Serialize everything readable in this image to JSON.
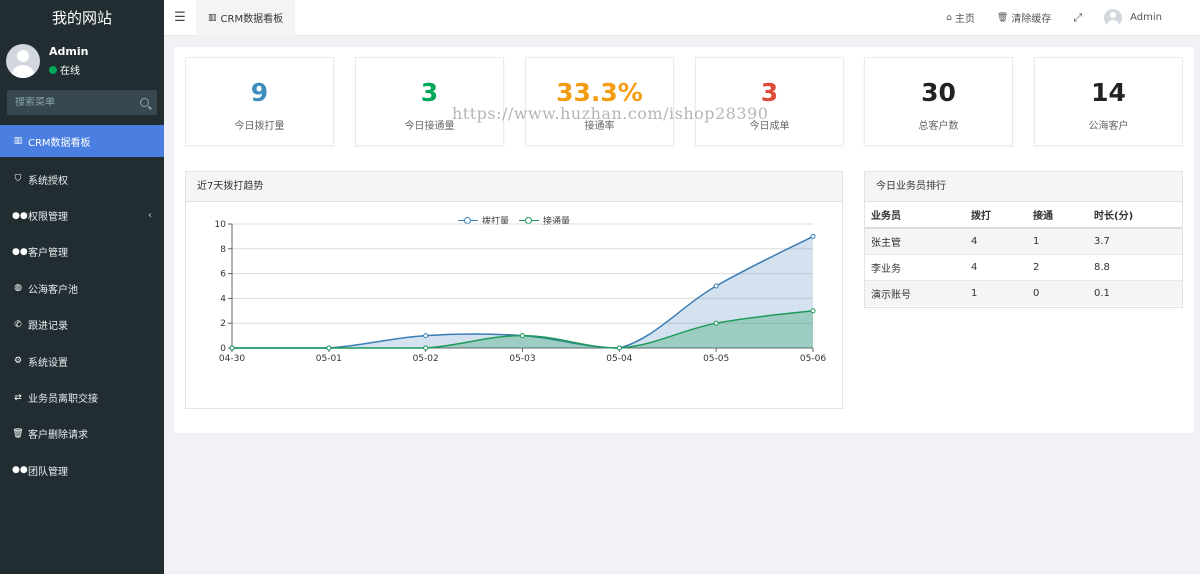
{
  "site": {
    "brand": "我的网站"
  },
  "user": {
    "name": "Admin",
    "status": "在线"
  },
  "search": {
    "placeholder": "搜索菜单"
  },
  "menu": [
    {
      "label": "CRM数据看板",
      "icon": "bar-chart-icon",
      "active": true
    },
    {
      "label": "系统授权",
      "icon": "shield-icon"
    },
    {
      "label": "权限管理",
      "icon": "users-icon",
      "caret": "‹"
    },
    {
      "label": "客户管理",
      "icon": "users-icon"
    },
    {
      "label": "公海客户池",
      "icon": "globe-icon"
    },
    {
      "label": "跟进记录",
      "icon": "phone-icon"
    },
    {
      "label": "系统设置",
      "icon": "gears-icon"
    },
    {
      "label": "业务员离职交接",
      "icon": "exchange-icon"
    },
    {
      "label": "客户删除请求",
      "icon": "trash-icon"
    },
    {
      "label": "团队管理",
      "icon": "users-icon"
    }
  ],
  "header": {
    "tab": "CRM数据看板",
    "home": "主页",
    "clear_cache": "清除缓存",
    "admin": "Admin"
  },
  "stats": [
    {
      "value": "9",
      "label": "今日拨打量",
      "color": "#3c8dbc"
    },
    {
      "value": "3",
      "label": "今日接通量",
      "color": "#00a65a"
    },
    {
      "value": "33.3%",
      "label": "接通率",
      "color": "#f39c12"
    },
    {
      "value": "3",
      "label": "今日成单",
      "color": "#dd4b39"
    },
    {
      "value": "30",
      "label": "总客户数",
      "color": "#222222"
    },
    {
      "value": "14",
      "label": "公海客户",
      "color": "#222222"
    }
  ],
  "trend_panel": {
    "title": "近7天拨打趋势"
  },
  "chart_data": {
    "type": "area",
    "x": [
      "04-30",
      "05-01",
      "05-02",
      "05-03",
      "05-04",
      "05-05",
      "05-06"
    ],
    "series": [
      {
        "name": "拨打量",
        "values": [
          0,
          0,
          1,
          1,
          0,
          5,
          9
        ],
        "color": "#3a7db5"
      },
      {
        "name": "接通量",
        "values": [
          0,
          0,
          0,
          1,
          0,
          2,
          3
        ],
        "color": "#1e9a5a"
      }
    ],
    "yticks": [
      "0",
      "2",
      "4",
      "6",
      "8",
      "10"
    ],
    "ylim": [
      0,
      10
    ],
    "grid": true,
    "legend": "top-center"
  },
  "rank_panel": {
    "title": "今日业务员排行",
    "columns": [
      "业务员",
      "拨打",
      "接通",
      "时长(分)"
    ],
    "rows": [
      [
        "张主管",
        "4",
        "1",
        "3.7"
      ],
      [
        "李业务",
        "4",
        "2",
        "8.8"
      ],
      [
        "演示账号",
        "1",
        "0",
        "0.1"
      ]
    ]
  },
  "watermark": "https://www.huzhan.com/ishop28390"
}
